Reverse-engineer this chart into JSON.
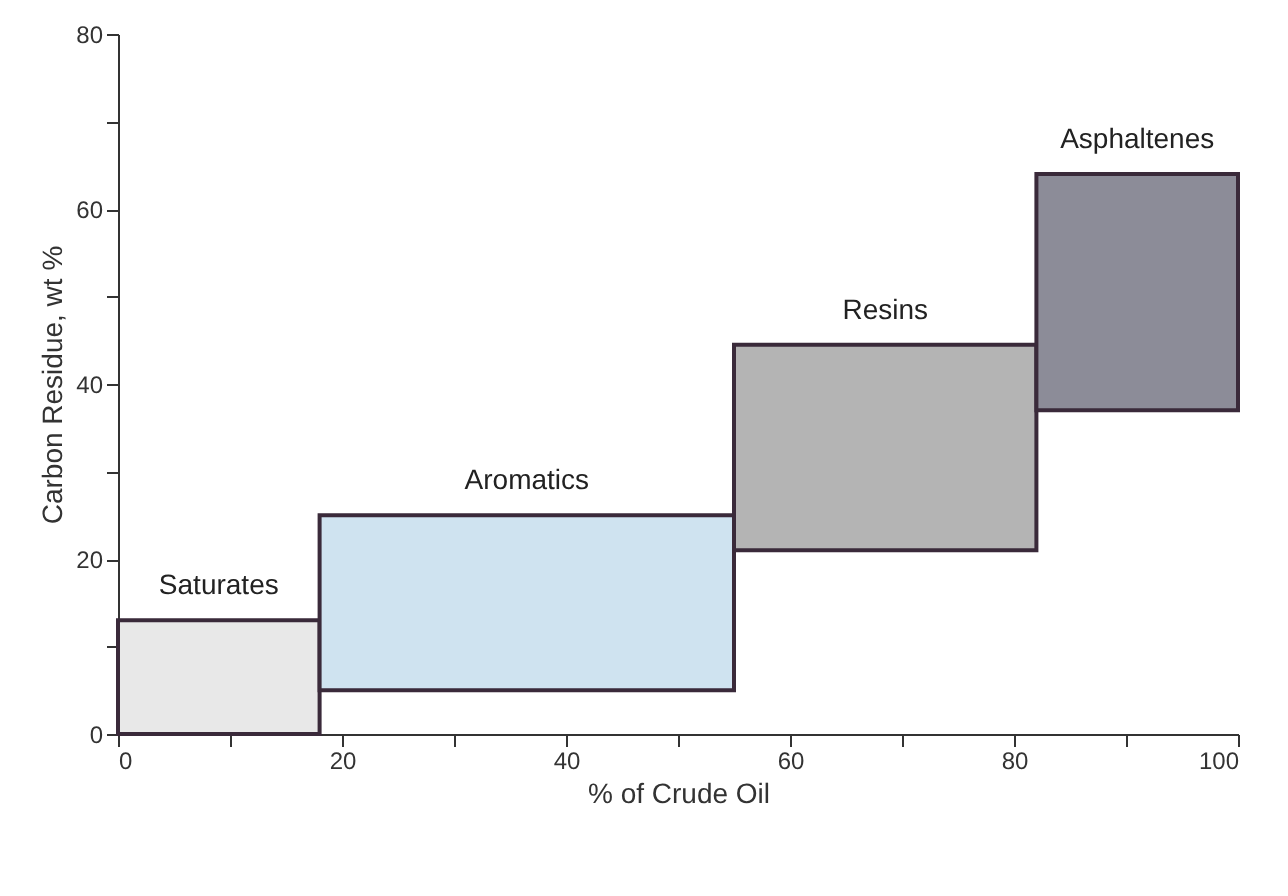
{
  "chart_data": {
    "type": "histogram",
    "xlabel": "% of Crude Oil",
    "ylabel": "Carbon Residue, wt %",
    "categories": [
      "Saturates",
      "Aromatics",
      "Resins",
      "Asphaltenes"
    ],
    "bins": [
      0,
      18,
      55,
      82,
      100
    ],
    "base": [
      0,
      5,
      21,
      37
    ],
    "values": [
      13,
      20,
      23.5,
      27
    ],
    "colors": [
      "#e8e8e8",
      "#cfe3f0",
      "#b4b4b4",
      "#8c8c98"
    ],
    "xlim": [
      0,
      100
    ],
    "xticks": [
      0,
      {
        "value": 10,
        "label": null
      },
      20,
      {
        "value": 30,
        "label": null
      },
      40,
      {
        "value": 50,
        "label": null
      },
      60,
      {
        "value": 70,
        "label": null
      },
      80,
      {
        "value": 90,
        "label": null
      },
      100
    ],
    "ylim": [
      0,
      80
    ],
    "yticks": [
      0,
      {
        "value": 10,
        "label": null
      },
      20,
      {
        "value": 30,
        "label": null
      },
      40,
      {
        "value": 50,
        "label": null
      },
      60,
      {
        "value": 70,
        "label": null
      },
      80
    ]
  }
}
